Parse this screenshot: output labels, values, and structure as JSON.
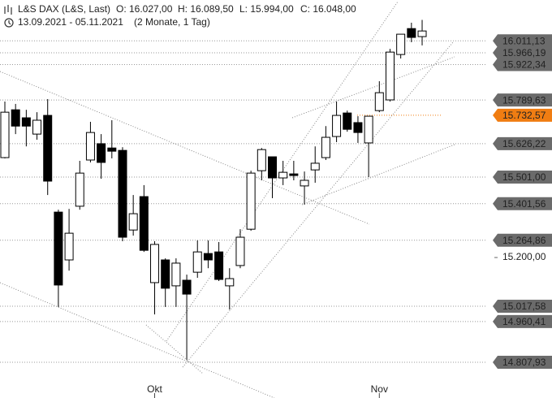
{
  "chart_data": {
    "type": "candlestick",
    "title": "L&S DAX (L&S, Last)",
    "ohlc_labels": [
      "O: 16.027,00",
      "H: 16.089,50",
      "L: 15.994,00",
      "C: 16.048,00"
    ],
    "date_range": "13.09.2021 - 05.11.2021",
    "duration": "(2 Monate, 1 Tag)",
    "categories": [
      null,
      null,
      null,
      null,
      null,
      null,
      null,
      null,
      null,
      null,
      null,
      null,
      null,
      null,
      "Okt",
      null,
      null,
      null,
      null,
      null,
      null,
      null,
      null,
      null,
      null,
      null,
      null,
      null,
      null,
      null,
      null,
      null,
      null,
      null,
      null,
      "Nov",
      null,
      null,
      null,
      null
    ],
    "open": [
      15574,
      15753,
      15723,
      15662,
      15732,
      15370,
      15191,
      15392,
      15565,
      15626,
      15610,
      15601,
      15303,
      15428,
      15106,
      15191,
      15094,
      15115,
      15145,
      15215,
      15221,
      15094,
      15170,
      15306,
      15525,
      15577,
      15498,
      15513,
      15468,
      15528,
      15574,
      15653,
      15741,
      15705,
      15629,
      15750,
      15790,
      15960,
      16057,
      16027
    ],
    "high": [
      15784,
      15775,
      15753,
      15744,
      15793,
      15379,
      15382,
      15562,
      15708,
      15662,
      15714,
      15613,
      15434,
      15471,
      15261,
      15197,
      15197,
      15136,
      15264,
      15264,
      15258,
      15160,
      15306,
      15525,
      15610,
      15577,
      15562,
      15562,
      15522,
      15616,
      15692,
      15784,
      15750,
      15729,
      15729,
      15860,
      15981,
      16036,
      16079,
      16089.5
    ],
    "low": [
      15571,
      15662,
      15616,
      15641,
      15434,
      15015,
      15151,
      15379,
      15556,
      15495,
      15571,
      15261,
      15282,
      15221,
      14987,
      15015,
      15015,
      14817,
      15124,
      15160,
      15112,
      15005,
      15160,
      15300,
      15489,
      15422,
      15471,
      15489,
      15398,
      15480,
      15565,
      15632,
      15671,
      15629,
      15501,
      15744,
      15784,
      15945,
      16006,
      15994
    ],
    "close": [
      15744,
      15692,
      15692,
      15714,
      15486,
      15097,
      15291,
      15516,
      15668,
      15556,
      15598,
      15276,
      15364,
      15227,
      15249,
      15085,
      15179,
      15063,
      15221,
      15191,
      15118,
      15121,
      15276,
      15516,
      15604,
      15498,
      15519,
      15507,
      15489,
      15553,
      15650,
      15732,
      15680,
      15668,
      15729,
      15817,
      15969,
      16036,
      16024,
      16048
    ],
    "up_color": "#ffffff",
    "down_color": "#000000",
    "ylim": [
      14741,
      16164
    ],
    "yticks": [
      {
        "value": 15200,
        "label": "15.200,00"
      }
    ],
    "levels": [
      {
        "value": 16011.13,
        "label": "16.011,13",
        "color": "#6b6b6b"
      },
      {
        "value": 15966.19,
        "label": "15.966,19",
        "color": "#6b6b6b"
      },
      {
        "value": 15922.34,
        "label": "15.922,34",
        "color": "#6b6b6b"
      },
      {
        "value": 15789.63,
        "label": "15.789,63",
        "color": "#6b6b6b"
      },
      {
        "value": 15732.57,
        "label": "15.732,57",
        "color": "#f07d12"
      },
      {
        "value": 15626.22,
        "label": "15.626,22",
        "color": "#6b6b6b"
      },
      {
        "value": 15501.0,
        "label": "15.501,00",
        "color": "#6b6b6b"
      },
      {
        "value": 15401.56,
        "label": "15.401,56",
        "color": "#6b6b6b"
      },
      {
        "value": 15264.86,
        "label": "15.264,86",
        "color": "#6b6b6b"
      },
      {
        "value": 15017.58,
        "label": "15.017,58",
        "color": "#6b6b6b"
      },
      {
        "value": 14960.41,
        "label": "14.960,41",
        "color": "#6b6b6b"
      },
      {
        "value": 14807.93,
        "label": "14.807,93",
        "color": "#6b6b6b"
      }
    ]
  }
}
